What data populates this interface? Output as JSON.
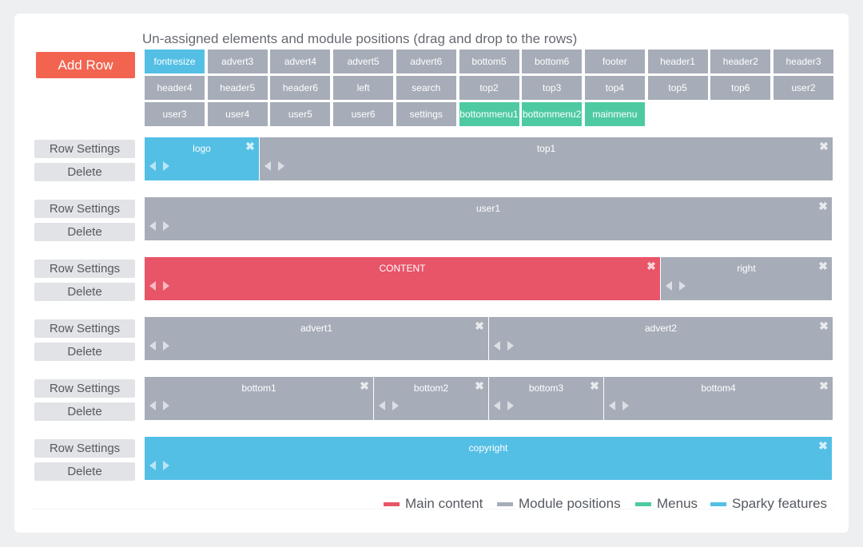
{
  "colors": {
    "main_content": "#e85468",
    "module_positions": "#a6adb8",
    "menus": "#4ecaa2",
    "sparky_features": "#54bfe5",
    "add_row": "#f26450"
  },
  "heading": "Un-assigned elements and module positions (drag and drop to the rows)",
  "add_row_label": "Add Row",
  "unassigned": [
    {
      "label": "fontresize",
      "type": "sparky_features"
    },
    {
      "label": "advert3",
      "type": "module_positions"
    },
    {
      "label": "advert4",
      "type": "module_positions"
    },
    {
      "label": "advert5",
      "type": "module_positions"
    },
    {
      "label": "advert6",
      "type": "module_positions"
    },
    {
      "label": "bottom5",
      "type": "module_positions"
    },
    {
      "label": "bottom6",
      "type": "module_positions"
    },
    {
      "label": "footer",
      "type": "module_positions"
    },
    {
      "label": "header1",
      "type": "module_positions"
    },
    {
      "label": "header2",
      "type": "module_positions"
    },
    {
      "label": "header3",
      "type": "module_positions"
    },
    {
      "label": "header4",
      "type": "module_positions"
    },
    {
      "label": "header5",
      "type": "module_positions"
    },
    {
      "label": "header6",
      "type": "module_positions"
    },
    {
      "label": "left",
      "type": "module_positions"
    },
    {
      "label": "search",
      "type": "module_positions"
    },
    {
      "label": "top2",
      "type": "module_positions"
    },
    {
      "label": "top3",
      "type": "module_positions"
    },
    {
      "label": "top4",
      "type": "module_positions"
    },
    {
      "label": "top5",
      "type": "module_positions"
    },
    {
      "label": "top6",
      "type": "module_positions"
    },
    {
      "label": "user2",
      "type": "module_positions"
    },
    {
      "label": "user3",
      "type": "module_positions"
    },
    {
      "label": "user4",
      "type": "module_positions"
    },
    {
      "label": "user5",
      "type": "module_positions"
    },
    {
      "label": "user6",
      "type": "module_positions"
    },
    {
      "label": "settings",
      "type": "module_positions"
    },
    {
      "label": "bottommenu1",
      "type": "menus"
    },
    {
      "label": "bottommenu2",
      "type": "menus"
    },
    {
      "label": "mainmenu",
      "type": "menus"
    }
  ],
  "row_buttons": {
    "settings": "Row Settings",
    "delete": "Delete"
  },
  "rows": [
    {
      "modules": [
        {
          "label": "logo",
          "type": "sparky_features",
          "span": 2
        },
        {
          "label": "top1",
          "type": "module_positions",
          "span": 10
        }
      ]
    },
    {
      "modules": [
        {
          "label": "user1",
          "type": "module_positions",
          "span": 12
        }
      ]
    },
    {
      "modules": [
        {
          "label": "CONTENT",
          "type": "main_content",
          "span": 9
        },
        {
          "label": "right",
          "type": "module_positions",
          "span": 3
        }
      ]
    },
    {
      "modules": [
        {
          "label": "advert1",
          "type": "module_positions",
          "span": 6
        },
        {
          "label": "advert2",
          "type": "module_positions",
          "span": 6
        }
      ]
    },
    {
      "modules": [
        {
          "label": "bottom1",
          "type": "module_positions",
          "span": 4
        },
        {
          "label": "bottom2",
          "type": "module_positions",
          "span": 2
        },
        {
          "label": "bottom3",
          "type": "module_positions",
          "span": 2
        },
        {
          "label": "bottom4",
          "type": "module_positions",
          "span": 4
        }
      ]
    },
    {
      "modules": [
        {
          "label": "copyright",
          "type": "sparky_features",
          "span": 12
        }
      ]
    }
  ],
  "legend": [
    {
      "label": "Main content",
      "type": "main_content"
    },
    {
      "label": "Module positions",
      "type": "module_positions"
    },
    {
      "label": "Menus",
      "type": "menus"
    },
    {
      "label": "Sparky features",
      "type": "sparky_features"
    }
  ]
}
